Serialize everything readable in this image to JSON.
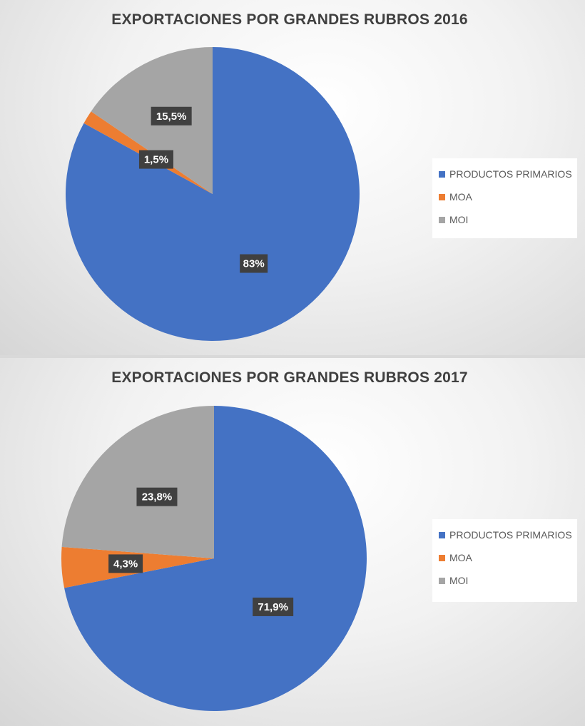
{
  "chart_data": [
    {
      "type": "pie",
      "title": "EXPORTACIONES POR GRANDES RUBROS 2016",
      "categories": [
        "PRODUCTOS PRIMARIOS",
        "MOA",
        "MOI"
      ],
      "values": [
        83,
        1.5,
        15.5
      ],
      "data_labels": [
        "83%",
        "1,5%",
        "15,5%"
      ],
      "colors": [
        "#4472C4",
        "#ED7D31",
        "#A5A5A5"
      ],
      "legend_position": "right"
    },
    {
      "type": "pie",
      "title": "EXPORTACIONES POR GRANDES RUBROS 2017",
      "categories": [
        "PRODUCTOS PRIMARIOS",
        "MOA",
        "MOI"
      ],
      "values": [
        71.9,
        4.3,
        23.8
      ],
      "data_labels": [
        "71,9%",
        "4,3%",
        "23,8%"
      ],
      "colors": [
        "#4472C4",
        "#ED7D31",
        "#A5A5A5"
      ],
      "legend_position": "right"
    }
  ]
}
